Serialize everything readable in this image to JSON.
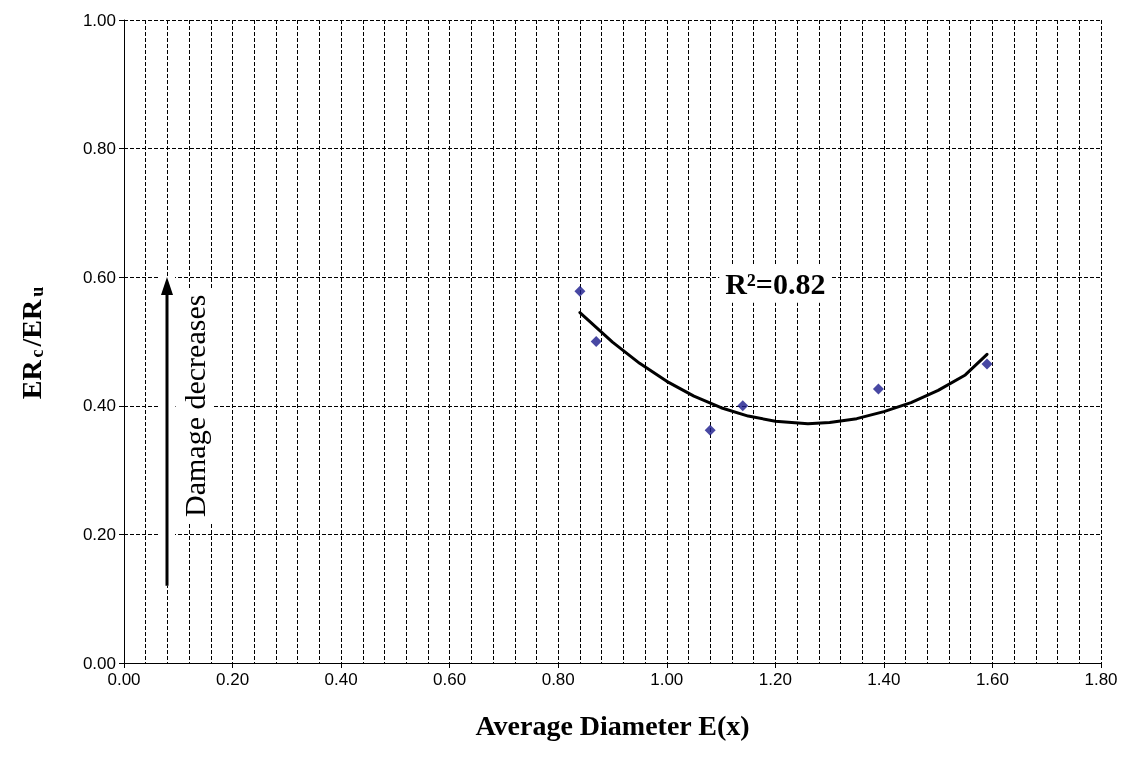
{
  "chart_data": {
    "type": "scatter",
    "xlabel": "Average Diameter E(x)",
    "ylabel": "ER$_{c}$/ER$_{u}$",
    "xlim": [
      0,
      1.8
    ],
    "xticks": [
      {
        "value": 0,
        "label": "0.00"
      },
      {
        "value": 0.2,
        "label": "0.20"
      },
      {
        "value": 0.4,
        "label": "0.40"
      },
      {
        "value": 0.6,
        "label": "0.60"
      },
      {
        "value": 0.8,
        "label": "0.80"
      },
      {
        "value": 1.0,
        "label": "1.00"
      },
      {
        "value": 1.2,
        "label": "1.20"
      },
      {
        "value": 1.4,
        "label": "1.40"
      },
      {
        "value": 1.6,
        "label": "1.60"
      },
      {
        "value": 1.8,
        "label": "1.80"
      }
    ],
    "ylim": [
      0,
      1
    ],
    "yticks": [
      {
        "value": 0,
        "label": "0.00"
      },
      {
        "value": 0.2,
        "label": "0.20"
      },
      {
        "value": 0.4,
        "label": "0.40"
      },
      {
        "value": 0.6,
        "label": "0.60"
      },
      {
        "value": 0.8,
        "label": "0.80"
      },
      {
        "value": 1.0,
        "label": "1.00"
      }
    ],
    "grid": true,
    "series": [
      {
        "color": "#1a1a8c",
        "marker": "diamond",
        "x": [
          0.84,
          0.87,
          1.08,
          1.14,
          1.39,
          1.59
        ],
        "values": [
          0.578,
          0.5,
          0.362,
          0.4,
          0.426,
          0.465
        ]
      },
      {
        "type": "line",
        "color": "#000000",
        "marker": "none",
        "line_style": "solid",
        "x": [
          0.84,
          0.9,
          0.95,
          1.0,
          1.05,
          1.1,
          1.15,
          1.2,
          1.26,
          1.3,
          1.35,
          1.4,
          1.45,
          1.5,
          1.55,
          1.59
        ],
        "values": [
          0.545,
          0.499,
          0.466,
          0.438,
          0.415,
          0.397,
          0.384,
          0.376,
          0.372,
          0.374,
          0.38,
          0.391,
          0.405,
          0.424,
          0.448,
          0.48
        ]
      }
    ],
    "annotations": [
      "R²=0.82",
      "Damage decreases"
    ]
  }
}
